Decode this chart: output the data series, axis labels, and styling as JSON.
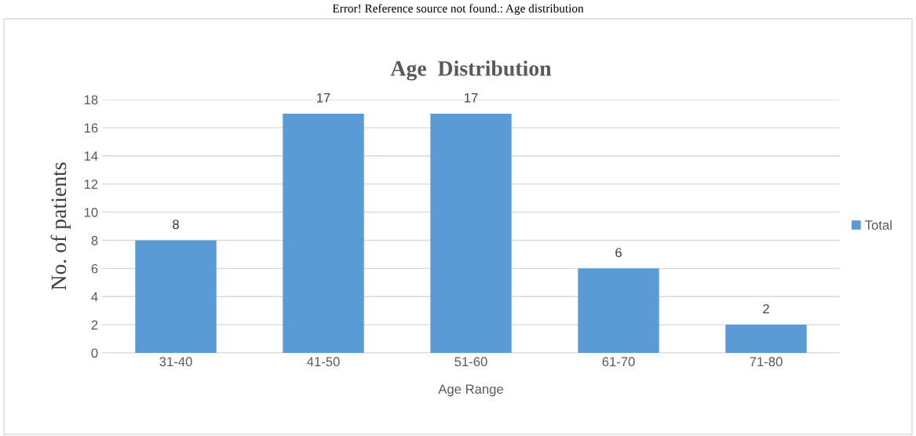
{
  "chart_data": {
    "type": "bar",
    "title": "Age  Distribution",
    "xlabel": "Age Range",
    "ylabel": "No. of patients",
    "annotations": [
      "Error! Reference source not found.: Age distribution"
    ],
    "categories": [
      "31-40",
      "41-50",
      "51-60",
      "61-70",
      "71-80"
    ],
    "series": [
      {
        "name": "Total",
        "color": "#5b9bd5",
        "values": [
          8,
          17,
          17,
          6,
          2
        ]
      }
    ],
    "ylim": [
      0,
      18
    ],
    "yticks": [
      0,
      2,
      4,
      6,
      8,
      10,
      12,
      14,
      16,
      18
    ],
    "grid": "y",
    "legend": "right",
    "data_labels": true
  }
}
